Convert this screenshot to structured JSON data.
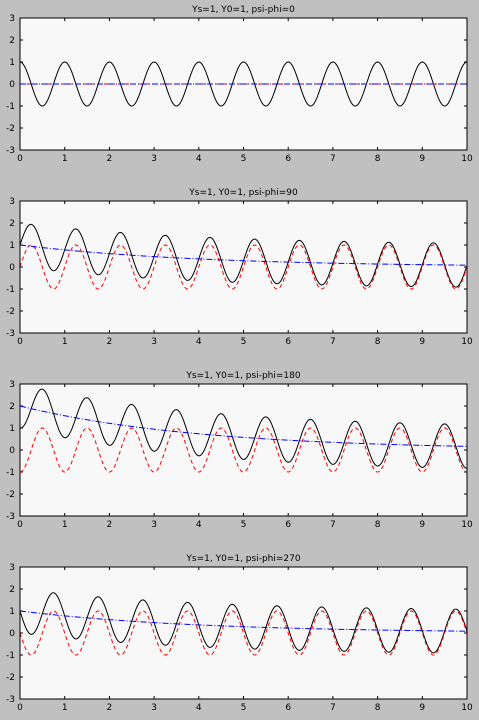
{
  "figure": {
    "background": "#c0c0c0",
    "axes_background": "#f8f8f8"
  },
  "chart_data": [
    {
      "type": "line",
      "title": "Ys=1, Y0=1, psi-phi=0",
      "xlim": [
        0,
        10
      ],
      "ylim": [
        -3,
        3
      ],
      "x_ticks": [
        0,
        1,
        2,
        3,
        4,
        5,
        6,
        7,
        8,
        9,
        10
      ],
      "y_ticks": [
        3,
        2,
        1,
        0,
        -1,
        -2,
        -3
      ],
      "series": [
        {
          "color": "#000000",
          "style": "solid",
          "function": "cos(2*pi*(x-0))",
          "values": [
            [
              0,
              1
            ],
            [
              0.5,
              -1
            ],
            [
              1,
              1
            ],
            [
              1.5,
              -1
            ],
            [
              2,
              1
            ],
            [
              2.5,
              -1
            ],
            [
              3,
              1
            ],
            [
              3.5,
              -1
            ],
            [
              4,
              1
            ],
            [
              4.5,
              -1
            ],
            [
              5,
              1
            ],
            [
              5.5,
              -1
            ],
            [
              6,
              1
            ],
            [
              6.5,
              -1
            ],
            [
              7,
              1
            ],
            [
              7.5,
              -1
            ],
            [
              8,
              1
            ],
            [
              8.5,
              -1
            ],
            [
              9,
              1
            ],
            [
              9.5,
              -1
            ],
            [
              10,
              1
            ]
          ]
        },
        {
          "color": "#ff0000",
          "style": "dashed",
          "function": "0",
          "values": [
            [
              0,
              0
            ],
            [
              10,
              0
            ]
          ]
        },
        {
          "color": "#0000ff",
          "style": "dashdot",
          "function": "0",
          "values": [
            [
              0,
              0
            ],
            [
              10,
              0
            ]
          ]
        }
      ]
    },
    {
      "type": "line",
      "title": "Ys=1, Y0=1, psi-phi=90",
      "xlim": [
        0,
        10
      ],
      "ylim": [
        -3,
        3
      ],
      "x_ticks": [
        0,
        1,
        2,
        3,
        4,
        5,
        6,
        7,
        8,
        9,
        10
      ],
      "y_ticks": [
        3,
        2,
        1,
        0,
        -1,
        -2,
        -3
      ],
      "series": [
        {
          "color": "#000000",
          "style": "solid",
          "function": "steady + transient",
          "values": [
            [
              0,
              1.0
            ],
            [
              0.2,
              1.9
            ],
            [
              0.7,
              -0.1
            ],
            [
              1.2,
              1.75
            ],
            [
              1.7,
              -0.2
            ],
            [
              2.2,
              1.6
            ],
            [
              2.7,
              -0.3
            ],
            [
              3.2,
              1.5
            ],
            [
              3.7,
              -0.45
            ],
            [
              4.2,
              1.4
            ],
            [
              4.7,
              -0.5
            ],
            [
              5.2,
              1.3
            ],
            [
              5.7,
              -0.6
            ],
            [
              6.2,
              1.25
            ],
            [
              6.7,
              -0.7
            ],
            [
              7.2,
              1.2
            ],
            [
              7.7,
              -0.75
            ],
            [
              8.2,
              1.15
            ],
            [
              8.7,
              -0.8
            ],
            [
              9.2,
              1.1
            ],
            [
              9.7,
              -0.85
            ],
            [
              10,
              0.1
            ]
          ]
        },
        {
          "color": "#ff0000",
          "style": "dashed",
          "function": "sin(2*pi*x)",
          "values": [
            [
              0,
              0
            ],
            [
              0.25,
              1
            ],
            [
              0.75,
              -1
            ],
            [
              1.25,
              1
            ],
            [
              1.75,
              -1
            ],
            [
              2.25,
              1
            ],
            [
              2.75,
              -1
            ],
            [
              3.25,
              1
            ],
            [
              3.75,
              -1
            ],
            [
              4.25,
              1
            ],
            [
              4.75,
              -1
            ],
            [
              5.25,
              1
            ],
            [
              5.75,
              -1
            ],
            [
              6.25,
              1
            ],
            [
              6.75,
              -1
            ],
            [
              7.25,
              1
            ],
            [
              7.75,
              -1
            ],
            [
              8.25,
              1
            ],
            [
              8.75,
              -1
            ],
            [
              9.25,
              1
            ],
            [
              9.75,
              -1
            ],
            [
              10,
              0
            ]
          ]
        },
        {
          "color": "#0000ff",
          "style": "dashdot",
          "function": "exp(-0.25*x)",
          "values": [
            [
              0,
              1.0
            ],
            [
              2,
              0.6
            ],
            [
              4,
              0.37
            ],
            [
              6,
              0.22
            ],
            [
              8,
              0.14
            ],
            [
              10,
              0.08
            ]
          ]
        }
      ]
    },
    {
      "type": "line",
      "title": "Ys=1, Y0=1, psi-phi=180",
      "xlim": [
        0,
        10
      ],
      "ylim": [
        -3,
        3
      ],
      "x_ticks": [
        0,
        1,
        2,
        3,
        4,
        5,
        6,
        7,
        8,
        9,
        10
      ],
      "y_ticks": [
        3,
        2,
        1,
        0,
        -1,
        -2,
        -3
      ],
      "series": [
        {
          "color": "#000000",
          "style": "solid",
          "function": "steady + transient",
          "values": [
            [
              0,
              1.0
            ],
            [
              0.5,
              2.8
            ],
            [
              1,
              0.8
            ],
            [
              1.5,
              2.4
            ],
            [
              2,
              0.4
            ],
            [
              2.5,
              2.1
            ],
            [
              3,
              0.2
            ],
            [
              3.5,
              1.8
            ],
            [
              4,
              -0.2
            ],
            [
              4.5,
              1.6
            ],
            [
              5,
              -0.4
            ],
            [
              5.5,
              1.45
            ],
            [
              6,
              -0.55
            ],
            [
              6.5,
              1.35
            ],
            [
              7,
              -0.65
            ],
            [
              7.5,
              1.25
            ],
            [
              8,
              -0.75
            ],
            [
              8.5,
              1.2
            ],
            [
              9,
              -0.8
            ],
            [
              9.5,
              1.15
            ],
            [
              10,
              -0.85
            ]
          ]
        },
        {
          "color": "#ff0000",
          "style": "dashed",
          "function": "-cos(2*pi*x)",
          "values": [
            [
              0,
              -1
            ],
            [
              0.5,
              1
            ],
            [
              1,
              -1
            ],
            [
              1.5,
              1
            ],
            [
              2,
              -1
            ],
            [
              2.5,
              1
            ],
            [
              3,
              -1
            ],
            [
              3.5,
              1
            ],
            [
              4,
              -1
            ],
            [
              4.5,
              1
            ],
            [
              5,
              -1
            ],
            [
              5.5,
              1
            ],
            [
              6,
              -1
            ],
            [
              6.5,
              1
            ],
            [
              7,
              -1
            ],
            [
              7.5,
              1
            ],
            [
              8,
              -1
            ],
            [
              8.5,
              1
            ],
            [
              9,
              -1
            ],
            [
              9.5,
              1
            ],
            [
              10,
              -1
            ]
          ]
        },
        {
          "color": "#0000ff",
          "style": "dashdot",
          "function": "2*exp(-0.25*x)",
          "values": [
            [
              0,
              2.0
            ],
            [
              2,
              1.2
            ],
            [
              4,
              0.74
            ],
            [
              6,
              0.45
            ],
            [
              8,
              0.27
            ],
            [
              10,
              0.16
            ]
          ]
        }
      ]
    },
    {
      "type": "line",
      "title": "Ys=1, Y0=1, psi-phi=270",
      "xlim": [
        0,
        10
      ],
      "ylim": [
        -3,
        3
      ],
      "x_ticks": [
        0,
        1,
        2,
        3,
        4,
        5,
        6,
        7,
        8,
        9,
        10
      ],
      "y_ticks": [
        3,
        2,
        1,
        0,
        -1,
        -2,
        -3
      ],
      "series": [
        {
          "color": "#000000",
          "style": "solid",
          "function": "steady + transient",
          "values": [
            [
              0,
              1.0
            ],
            [
              0.2,
              0.05
            ],
            [
              0.75,
              1.8
            ],
            [
              1.25,
              -0.3
            ],
            [
              1.75,
              1.6
            ],
            [
              2.25,
              -0.45
            ],
            [
              2.75,
              1.5
            ],
            [
              3.25,
              -0.55
            ],
            [
              3.75,
              1.4
            ],
            [
              4.25,
              -0.65
            ],
            [
              4.75,
              1.3
            ],
            [
              5.25,
              -0.75
            ],
            [
              5.75,
              1.2
            ],
            [
              6.25,
              -0.8
            ],
            [
              6.75,
              1.15
            ],
            [
              7.25,
              -0.85
            ],
            [
              7.75,
              1.1
            ],
            [
              8.25,
              -0.9
            ],
            [
              8.75,
              1.1
            ],
            [
              9.25,
              -0.9
            ],
            [
              9.75,
              1.05
            ],
            [
              10,
              0.1
            ]
          ]
        },
        {
          "color": "#ff0000",
          "style": "dashed",
          "function": "-sin(2*pi*x)",
          "values": [
            [
              0,
              0
            ],
            [
              0.25,
              -1
            ],
            [
              0.75,
              1
            ],
            [
              1.25,
              -1
            ],
            [
              1.75,
              1
            ],
            [
              2.25,
              -1
            ],
            [
              2.75,
              1
            ],
            [
              3.25,
              -1
            ],
            [
              3.75,
              1
            ],
            [
              4.25,
              -1
            ],
            [
              4.75,
              1
            ],
            [
              5.25,
              -1
            ],
            [
              5.75,
              1
            ],
            [
              6.25,
              -1
            ],
            [
              6.75,
              1
            ],
            [
              7.25,
              -1
            ],
            [
              7.75,
              1
            ],
            [
              8.25,
              -1
            ],
            [
              8.75,
              1
            ],
            [
              9.25,
              -1
            ],
            [
              9.75,
              1
            ],
            [
              10,
              0
            ]
          ]
        },
        {
          "color": "#0000ff",
          "style": "dashdot",
          "function": "exp(-0.25*x)",
          "values": [
            [
              0,
              1.0
            ],
            [
              2,
              0.6
            ],
            [
              4,
              0.37
            ],
            [
              6,
              0.22
            ],
            [
              8,
              0.14
            ],
            [
              10,
              0.08
            ]
          ]
        }
      ]
    }
  ]
}
